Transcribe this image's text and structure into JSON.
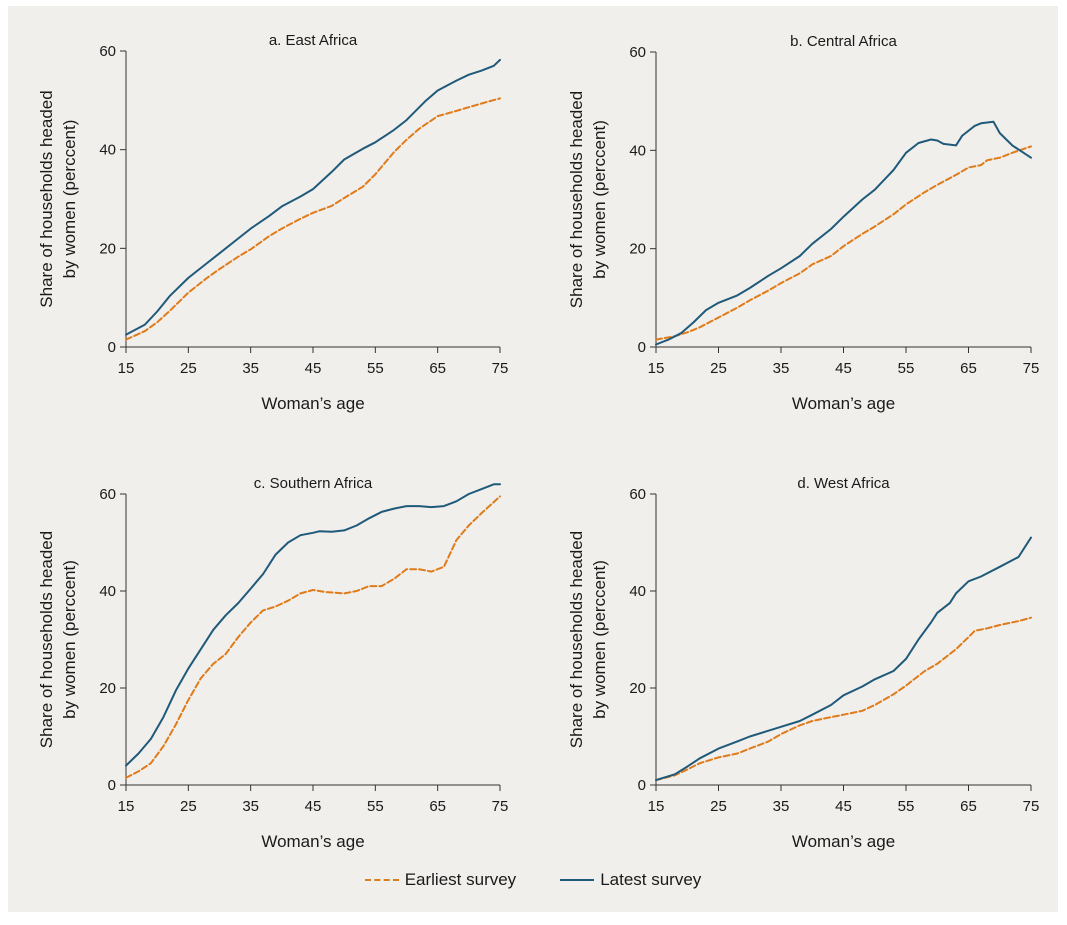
{
  "colors": {
    "earliest": "#e07b1a",
    "latest": "#1f5a7a",
    "background": "#f1efec"
  },
  "legend": {
    "items": [
      "Earliest survey",
      "Latest survey"
    ]
  },
  "chart_data": [
    {
      "type": "line",
      "title": "a. East Africa",
      "xlabel": "Woman’s age",
      "ylabel": [
        "Share of households headed",
        "by women (perccent)"
      ],
      "xlim": [
        15,
        75
      ],
      "ylim": [
        0,
        60
      ],
      "xticks": [
        15,
        25,
        35,
        45,
        55,
        65,
        75
      ],
      "yticks": [
        0,
        20,
        40,
        60
      ],
      "series": [
        {
          "name": "Earliest survey",
          "style": "dashed",
          "x": [
            15,
            18,
            20,
            22,
            25,
            28,
            30,
            33,
            35,
            38,
            40,
            43,
            45,
            48,
            50,
            53,
            55,
            58,
            60,
            62,
            65,
            67,
            70,
            73,
            75
          ],
          "y": [
            1.5,
            3.2,
            5,
            7.3,
            11,
            14,
            15.8,
            18.3,
            19.8,
            22.5,
            24,
            26,
            27.2,
            28.6,
            30.2,
            32.5,
            35,
            39.5,
            42,
            44.2,
            46.8,
            47.5,
            48.6,
            49.7,
            50.4
          ]
        },
        {
          "name": "Latest survey",
          "style": "solid",
          "x": [
            15,
            18,
            20,
            22,
            25,
            28,
            30,
            33,
            35,
            38,
            40,
            43,
            45,
            48,
            50,
            53,
            55,
            58,
            60,
            63,
            65,
            68,
            70,
            72,
            74,
            75
          ],
          "y": [
            2.5,
            4.5,
            7.2,
            10.3,
            14,
            17,
            19,
            22,
            24,
            26.6,
            28.5,
            30.5,
            32,
            35.5,
            38,
            40.2,
            41.5,
            44,
            46,
            49.8,
            52,
            54,
            55.2,
            56,
            57,
            58.2
          ]
        }
      ]
    },
    {
      "type": "line",
      "title": "b. Central Africa",
      "xlabel": "Woman’s age",
      "ylabel": [
        "Share of households headed",
        "by women (perccent)"
      ],
      "xlim": [
        15,
        75
      ],
      "ylim": [
        0,
        60
      ],
      "xticks": [
        15,
        25,
        35,
        45,
        55,
        65,
        75
      ],
      "yticks": [
        0,
        20,
        40,
        60
      ],
      "series": [
        {
          "name": "Earliest survey",
          "style": "dashed",
          "x": [
            15,
            18,
            20,
            22,
            25,
            28,
            30,
            33,
            35,
            38,
            40,
            43,
            45,
            48,
            50,
            53,
            55,
            58,
            60,
            63,
            65,
            67,
            68,
            70,
            72,
            75
          ],
          "y": [
            1.5,
            2.2,
            3,
            4,
            6,
            8,
            9.5,
            11.5,
            13,
            15,
            16.8,
            18.5,
            20.5,
            23,
            24.5,
            27,
            29,
            31.5,
            33,
            35,
            36.5,
            37,
            38,
            38.5,
            39.5,
            40.8
          ]
        },
        {
          "name": "Latest survey",
          "style": "solid",
          "x": [
            15,
            17,
            19,
            21,
            23,
            25,
            28,
            30,
            33,
            35,
            38,
            40,
            43,
            45,
            48,
            50,
            53,
            55,
            57,
            59,
            60,
            61,
            63,
            64,
            66,
            67,
            69,
            70,
            72,
            75
          ],
          "y": [
            0.5,
            1.5,
            2.8,
            5,
            7.5,
            9,
            10.5,
            12,
            14.5,
            16,
            18.5,
            21,
            24,
            26.5,
            30,
            32,
            36,
            39.5,
            41.5,
            42.2,
            42,
            41.3,
            41,
            43,
            45,
            45.5,
            45.8,
            43.5,
            41,
            38.5
          ]
        }
      ]
    },
    {
      "type": "line",
      "title": "c. Southern Africa",
      "xlabel": "Woman’s age",
      "ylabel": [
        "Share of households headed",
        "by women (perccent)"
      ],
      "xlim": [
        15,
        75
      ],
      "ylim": [
        0,
        60
      ],
      "xticks": [
        15,
        25,
        35,
        45,
        55,
        65,
        75
      ],
      "yticks": [
        0,
        20,
        40,
        60
      ],
      "series": [
        {
          "name": "Earliest survey",
          "style": "dashed",
          "x": [
            15,
            17,
            19,
            21,
            23,
            25,
            27,
            29,
            31,
            33,
            35,
            37,
            39,
            41,
            43,
            45,
            47,
            50,
            52,
            54,
            56,
            58,
            60,
            62,
            64,
            66,
            68,
            70,
            72,
            75
          ],
          "y": [
            1.5,
            2.8,
            4.5,
            8,
            12.5,
            17.5,
            22,
            25,
            27,
            30.5,
            33.5,
            36,
            36.8,
            38,
            39.5,
            40.2,
            39.8,
            39.5,
            40,
            41,
            41,
            42.5,
            44.5,
            44.5,
            44,
            45,
            50.5,
            53.5,
            56,
            59.5
          ]
        },
        {
          "name": "Latest survey",
          "style": "solid",
          "x": [
            15,
            17,
            19,
            21,
            23,
            25,
            27,
            29,
            31,
            33,
            35,
            37,
            39,
            41,
            43,
            45,
            46,
            48,
            50,
            52,
            54,
            56,
            58,
            60,
            62,
            64,
            66,
            68,
            70,
            72,
            74,
            75
          ],
          "y": [
            4,
            6.5,
            9.5,
            14,
            19.5,
            24,
            28,
            32,
            35,
            37.5,
            40.5,
            43.5,
            47.5,
            50,
            51.5,
            52,
            52.3,
            52.2,
            52.5,
            53.5,
            55,
            56.3,
            57,
            57.5,
            57.5,
            57.3,
            57.5,
            58.5,
            60,
            61,
            62,
            62
          ]
        }
      ]
    },
    {
      "type": "line",
      "title": "d. West Africa",
      "xlabel": "Woman’s age",
      "ylabel": [
        "Share of households headed",
        "by women (perccent)"
      ],
      "xlim": [
        15,
        75
      ],
      "ylim": [
        0,
        60
      ],
      "xticks": [
        15,
        25,
        35,
        45,
        55,
        65,
        75
      ],
      "yticks": [
        0,
        20,
        40,
        60
      ],
      "series": [
        {
          "name": "Earliest survey",
          "style": "dashed",
          "x": [
            15,
            18,
            20,
            22,
            25,
            28,
            30,
            33,
            35,
            38,
            40,
            43,
            45,
            48,
            50,
            53,
            55,
            58,
            60,
            63,
            65,
            66,
            68,
            70,
            73,
            75
          ],
          "y": [
            1,
            2,
            3.2,
            4.5,
            5.7,
            6.5,
            7.5,
            9,
            10.5,
            12.3,
            13.2,
            14,
            14.5,
            15.3,
            16.5,
            18.7,
            20.5,
            23.5,
            25,
            28,
            30.5,
            31.8,
            32.3,
            33,
            33.8,
            34.5
          ]
        },
        {
          "name": "Latest survey",
          "style": "solid",
          "x": [
            15,
            18,
            20,
            22,
            25,
            28,
            30,
            33,
            35,
            38,
            40,
            43,
            45,
            48,
            50,
            53,
            55,
            57,
            59,
            60,
            62,
            63,
            65,
            67,
            70,
            73,
            75
          ],
          "y": [
            1,
            2.2,
            3.8,
            5.5,
            7.5,
            9,
            10,
            11.2,
            12,
            13.2,
            14.5,
            16.5,
            18.5,
            20.3,
            21.8,
            23.5,
            26,
            30,
            33.5,
            35.5,
            37.5,
            39.5,
            42,
            43,
            45,
            47,
            51
          ]
        }
      ]
    }
  ]
}
